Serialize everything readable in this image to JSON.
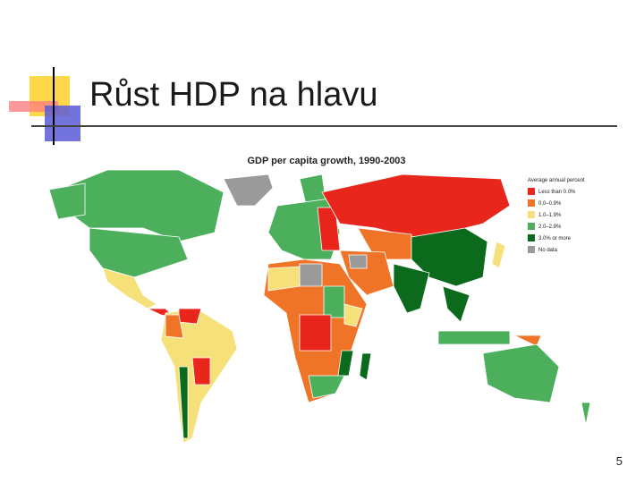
{
  "slide": {
    "title": "Růst HDP na hlavu",
    "page_number": "5"
  },
  "map": {
    "title": "GDP per capita growth, 1990-2003",
    "legend": {
      "title": "Average annual percent",
      "items": [
        {
          "label": "Less than 0.0%",
          "color": "#e8261c"
        },
        {
          "label": "0.0–0.9%",
          "color": "#f07427"
        },
        {
          "label": "1.0–1.9%",
          "color": "#f5e07a"
        },
        {
          "label": "2.0–2.9%",
          "color": "#4caf5c"
        },
        {
          "label": "3.0% or more",
          "color": "#0b6a1c"
        },
        {
          "label": "No data",
          "color": "#9a9a9a"
        }
      ]
    }
  }
}
